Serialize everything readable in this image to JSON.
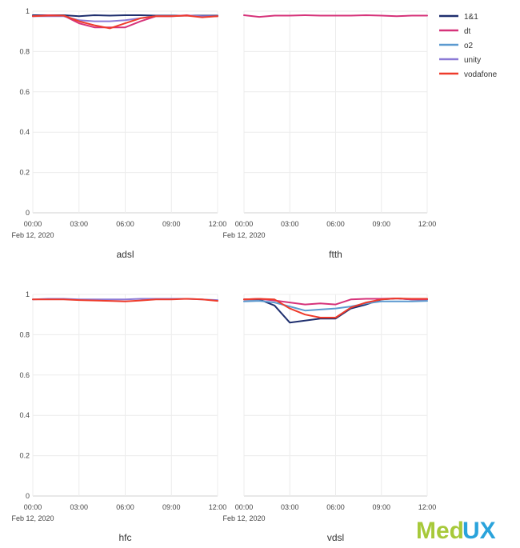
{
  "colors": {
    "1&1": "#1f2f6e",
    "dt": "#d6337a",
    "o2": "#5c9ad0",
    "unity": "#8c7ad6",
    "vodafone": "#ee3b2b",
    "logo_green": "#a7c93a",
    "logo_blue": "#2aa3db"
  },
  "legend": [
    "1&1",
    "dt",
    "o2",
    "unity",
    "vodafone"
  ],
  "logo": {
    "part1": "Med",
    "part2": "UX"
  },
  "chart_data": [
    {
      "type": "line",
      "title": "adsl",
      "x_ticks": [
        "00:00",
        "03:00",
        "06:00",
        "09:00",
        "12:00"
      ],
      "x_date_label": "Feb 12, 2020",
      "y_ticks": [
        "0",
        "0.2",
        "0.4",
        "0.6",
        "0.8",
        "1"
      ],
      "ylim": [
        0,
        1
      ],
      "x": [
        "00:00",
        "01:00",
        "02:00",
        "03:00",
        "04:00",
        "05:00",
        "06:00",
        "07:00",
        "08:00",
        "09:00",
        "10:00",
        "11:00",
        "12:00"
      ],
      "series": [
        {
          "name": "1&1",
          "values": [
            0.98,
            0.98,
            0.98,
            0.975,
            0.98,
            0.978,
            0.98,
            0.98,
            0.978,
            0.978,
            0.978,
            0.978,
            0.978
          ]
        },
        {
          "name": "dt",
          "values": [
            0.975,
            0.98,
            0.978,
            0.94,
            0.92,
            0.92,
            0.92,
            0.95,
            0.975,
            0.975,
            0.98,
            0.972,
            0.975
          ]
        },
        {
          "name": "unity",
          "values": [
            0.975,
            0.975,
            0.975,
            0.955,
            0.95,
            0.95,
            0.955,
            0.965,
            0.975,
            0.975,
            0.978,
            0.975,
            0.975
          ]
        },
        {
          "name": "vodafone",
          "values": [
            0.975,
            0.978,
            0.978,
            0.95,
            0.93,
            0.915,
            0.94,
            0.965,
            0.975,
            0.975,
            0.978,
            0.97,
            0.975
          ]
        }
      ]
    },
    {
      "type": "line",
      "title": "ftth",
      "x_ticks": [
        "00:00",
        "03:00",
        "06:00",
        "09:00",
        "12:00"
      ],
      "x_date_label": "Feb 12, 2020",
      "y_ticks": [],
      "ylim": [
        0,
        1
      ],
      "x": [
        "00:00",
        "01:00",
        "02:00",
        "03:00",
        "04:00",
        "05:00",
        "06:00",
        "07:00",
        "08:00",
        "09:00",
        "10:00",
        "11:00",
        "12:00"
      ],
      "series": [
        {
          "name": "dt",
          "values": [
            0.98,
            0.972,
            0.978,
            0.978,
            0.98,
            0.978,
            0.978,
            0.978,
            0.98,
            0.978,
            0.975,
            0.978,
            0.978
          ]
        }
      ]
    },
    {
      "type": "line",
      "title": "hfc",
      "x_ticks": [
        "00:00",
        "03:00",
        "06:00",
        "09:00",
        "12:00"
      ],
      "x_date_label": "Feb 12, 2020",
      "y_ticks": [
        "0",
        "0.2",
        "0.4",
        "0.6",
        "0.8",
        "1"
      ],
      "ylim": [
        0,
        1
      ],
      "x": [
        "00:00",
        "01:00",
        "02:00",
        "03:00",
        "04:00",
        "05:00",
        "06:00",
        "07:00",
        "08:00",
        "09:00",
        "10:00",
        "11:00",
        "12:00"
      ],
      "series": [
        {
          "name": "unity",
          "values": [
            0.975,
            0.978,
            0.978,
            0.975,
            0.975,
            0.975,
            0.975,
            0.978,
            0.978,
            0.978,
            0.978,
            0.975,
            0.972
          ]
        },
        {
          "name": "vodafone",
          "values": [
            0.975,
            0.975,
            0.975,
            0.972,
            0.97,
            0.968,
            0.965,
            0.97,
            0.975,
            0.975,
            0.978,
            0.975,
            0.968
          ]
        }
      ]
    },
    {
      "type": "line",
      "title": "vdsl",
      "x_ticks": [
        "00:00",
        "03:00",
        "06:00",
        "09:00",
        "12:00"
      ],
      "x_date_label": "Feb 12, 2020",
      "y_ticks": [],
      "ylim": [
        0,
        1
      ],
      "x": [
        "00:00",
        "01:00",
        "02:00",
        "03:00",
        "04:00",
        "05:00",
        "06:00",
        "07:00",
        "08:00",
        "09:00",
        "10:00",
        "11:00",
        "12:00"
      ],
      "series": [
        {
          "name": "1&1",
          "values": [
            0.975,
            0.975,
            0.945,
            0.86,
            0.87,
            0.88,
            0.88,
            0.93,
            0.95,
            0.975,
            0.98,
            0.975,
            0.975
          ]
        },
        {
          "name": "dt",
          "values": [
            0.975,
            0.978,
            0.97,
            0.96,
            0.95,
            0.955,
            0.95,
            0.975,
            0.978,
            0.978,
            0.98,
            0.975,
            0.975
          ]
        },
        {
          "name": "o2",
          "values": [
            0.965,
            0.968,
            0.96,
            0.94,
            0.92,
            0.925,
            0.93,
            0.94,
            0.955,
            0.965,
            0.965,
            0.965,
            0.968
          ]
        },
        {
          "name": "vodafone",
          "values": [
            0.975,
            0.978,
            0.975,
            0.93,
            0.9,
            0.885,
            0.885,
            0.935,
            0.96,
            0.975,
            0.98,
            0.978,
            0.978
          ]
        }
      ]
    }
  ]
}
